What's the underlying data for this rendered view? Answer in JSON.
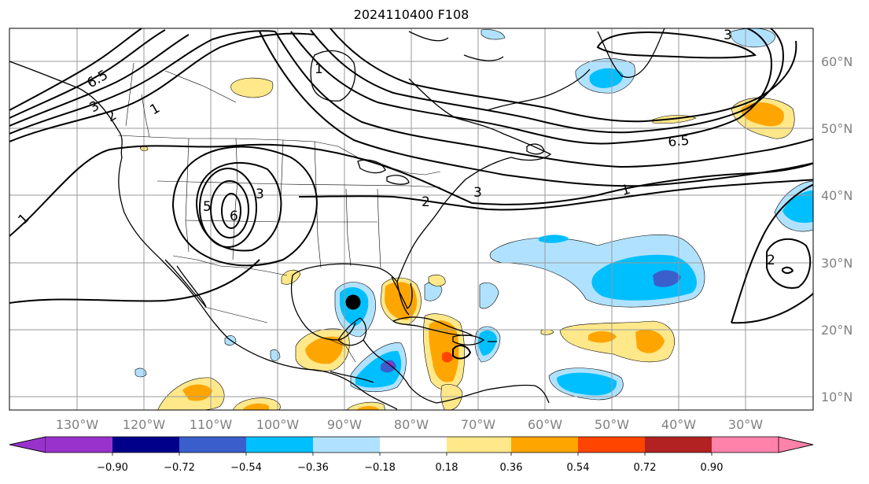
{
  "title": "2024110400 F108",
  "longitude_labels": [
    "130°W",
    "120°W",
    "110°W",
    "100°W",
    "90°W",
    "80°W",
    "70°W",
    "60°W",
    "50°W",
    "40°W",
    "30°W"
  ],
  "latitude_labels": [
    "60°N",
    "50°N",
    "40°N",
    "30°N",
    "20°N",
    "10°N"
  ],
  "colorbar": {
    "ticks": [
      "−0.90",
      "−0.72",
      "−0.54",
      "−0.36",
      "−0.18",
      "0.18",
      "0.36",
      "0.54",
      "0.72",
      "0.90"
    ],
    "colors": [
      "#9932cc",
      "#00008b",
      "#3a5fcd",
      "#00bfff",
      "#b0e2ff",
      "#ffffff",
      "#ffe88a",
      "#ffa500",
      "#ff4500",
      "#b22222",
      "#ff82ab"
    ]
  },
  "contour_labels": [
    "6.5",
    "3",
    "2",
    "1",
    "1",
    "5",
    "6",
    "3",
    "2",
    "3",
    "1",
    "6.5",
    "3",
    "2",
    "1"
  ],
  "marker": {
    "name": "storm-center",
    "lat": 24,
    "lon": -88.5
  }
}
